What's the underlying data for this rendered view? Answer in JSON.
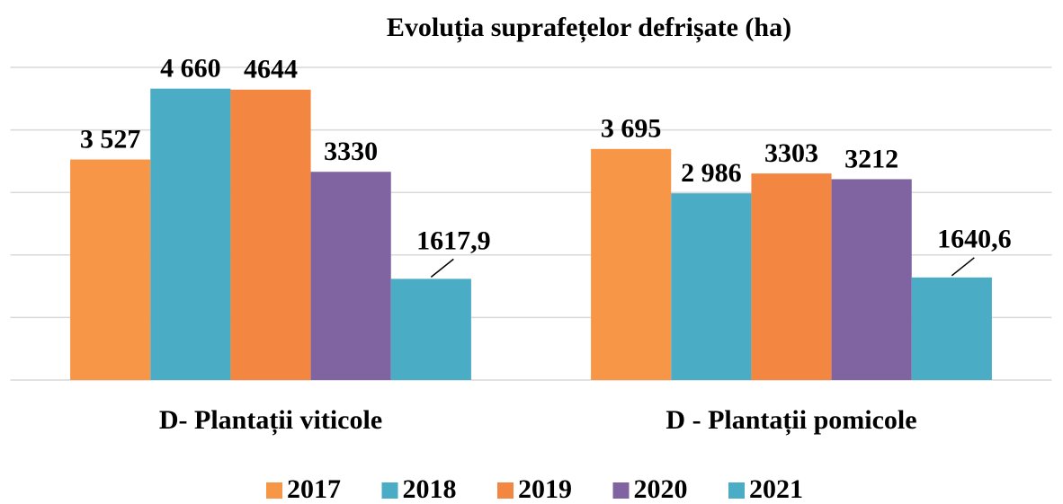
{
  "chart_data": {
    "type": "bar",
    "title": "Evoluția suprafețelor defrișate (ha)",
    "categories": [
      "D- Plantații viticole",
      "D - Plantații pomicole"
    ],
    "series": [
      {
        "name": "2017",
        "color": "#f79646",
        "values": [
          3527,
          3695
        ],
        "value_labels": [
          "3 527",
          "3 695"
        ]
      },
      {
        "name": "2018",
        "color": "#4bacc6",
        "values": [
          4660,
          2986
        ],
        "value_labels": [
          "4 660",
          "2 986"
        ]
      },
      {
        "name": "2019",
        "color": "#f38640",
        "values": [
          4644,
          3303
        ]
      },
      {
        "name": "2020",
        "color": "#8064a2",
        "values": [
          3330,
          3212
        ]
      },
      {
        "name": "2021",
        "color": "#4bacc6",
        "values": [
          1617.9,
          1640.6
        ],
        "value_labels": [
          "1617,9",
          "1640,6"
        ]
      }
    ],
    "ylim": [
      0,
      5000
    ],
    "yticks": [
      0,
      1000,
      2000,
      3000,
      4000,
      5000
    ],
    "grid": true
  }
}
